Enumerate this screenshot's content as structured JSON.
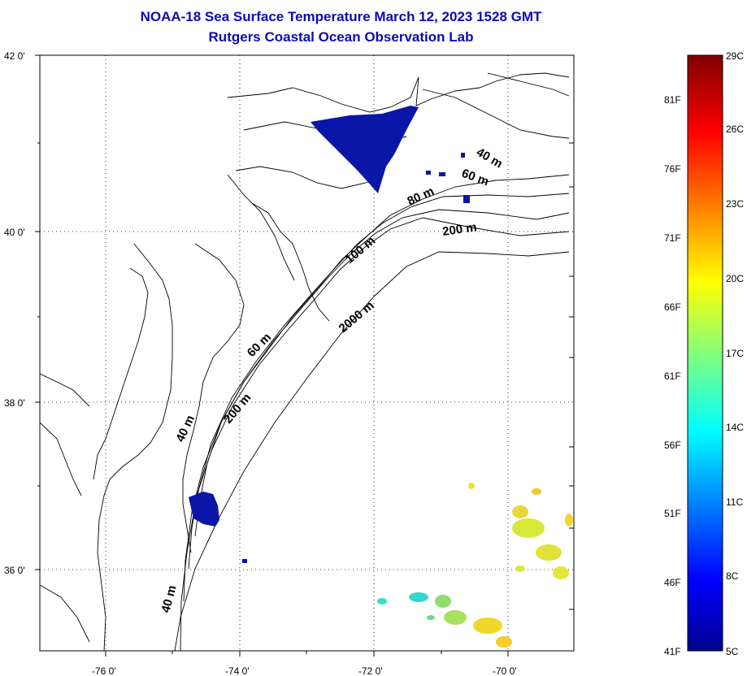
{
  "title": {
    "line1": "NOAA-18 Sea Surface Temperature March 12, 2023 1528 GMT",
    "line2": "Rutgers Coastal Ocean Observation Lab"
  },
  "map": {
    "lat_ticks": [
      "42 0'",
      "40 0'",
      "38 0'",
      "36 0'"
    ],
    "lon_ticks": [
      "-76 0'",
      "-74 0'",
      "-72 0'",
      "-70 0'"
    ],
    "contour_labels": [
      "40 m",
      "60 m",
      "80 m",
      "200 m",
      "100 m",
      "2000 m",
      "60 m",
      "200 m",
      "40 m",
      "40 m"
    ]
  },
  "colorbar": {
    "fahrenheit_labels": [
      "81F",
      "76F",
      "71F",
      "66F",
      "61F",
      "56F",
      "51F",
      "46F",
      "41F"
    ],
    "celsius_labels": [
      "29C",
      "26C",
      "23C",
      "20C",
      "17C",
      "14C",
      "11C",
      "8C",
      "5C"
    ]
  },
  "colors": {
    "title": "#0b0bb4",
    "cold_patch": "#0a16a8"
  }
}
